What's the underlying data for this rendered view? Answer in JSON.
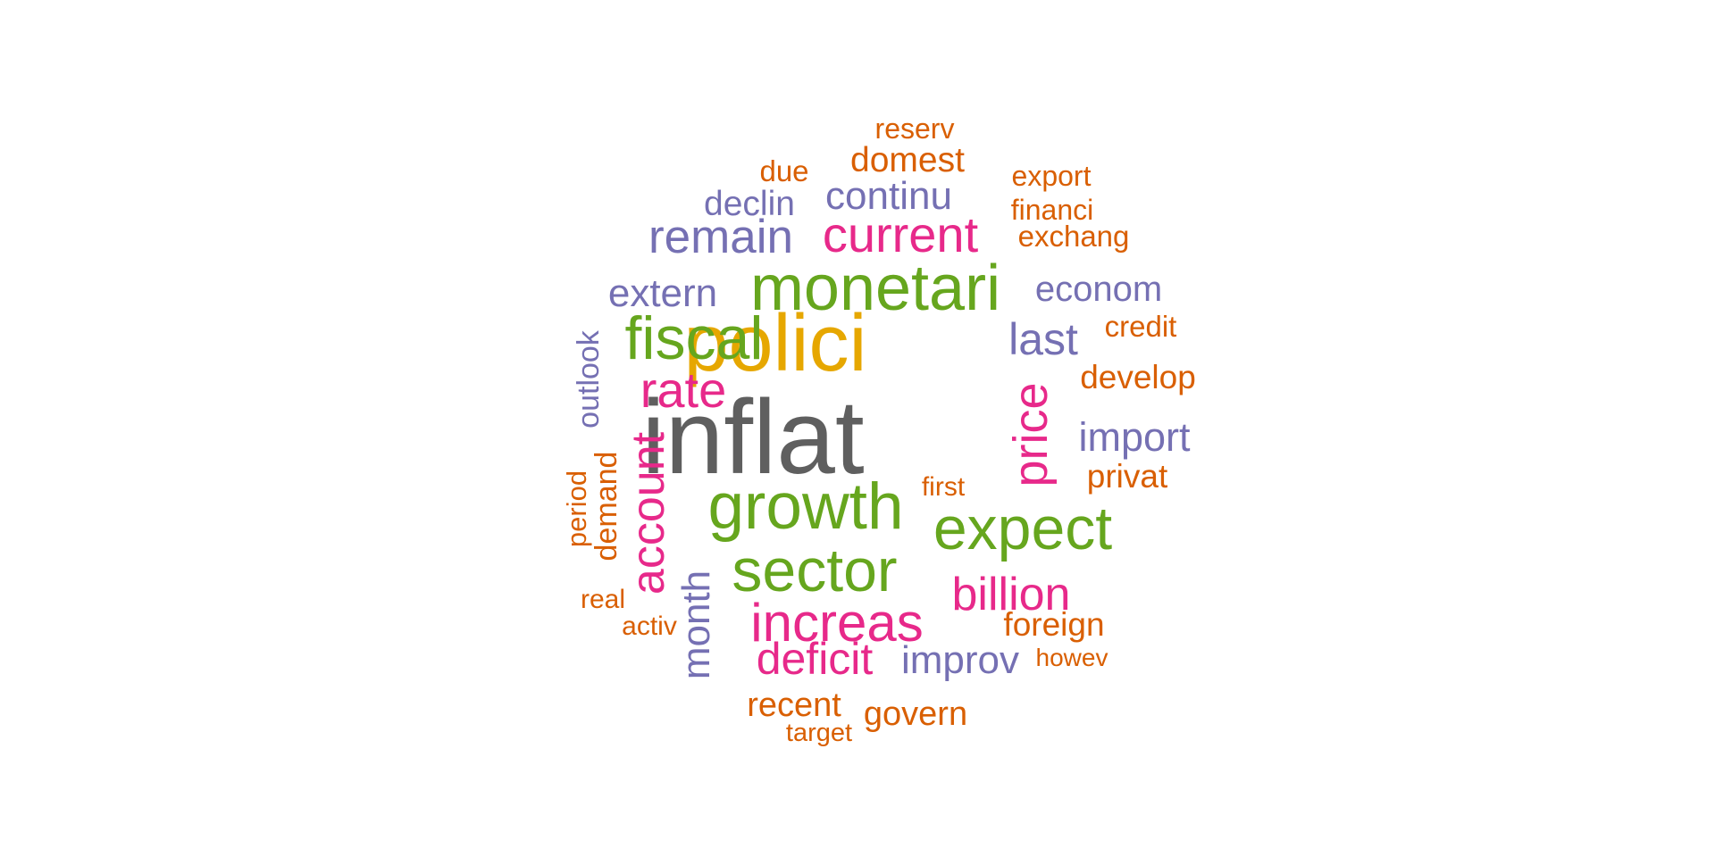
{
  "word_cloud": {
    "colors": {
      "gray": "#5f5f5f",
      "gold": "#e6a700",
      "green": "#66a61e",
      "magenta": "#e7298a",
      "purple": "#7570b3",
      "orange": "#d95f02"
    },
    "words": [
      {
        "text": "inflat",
        "color": "gray"
      },
      {
        "text": "polici",
        "color": "gold"
      },
      {
        "text": "monetari",
        "color": "green"
      },
      {
        "text": "growth",
        "color": "green"
      },
      {
        "text": "fiscal",
        "color": "green"
      },
      {
        "text": "sector",
        "color": "green"
      },
      {
        "text": "expect",
        "color": "green"
      },
      {
        "text": "current",
        "color": "magenta"
      },
      {
        "text": "rate",
        "color": "magenta"
      },
      {
        "text": "account",
        "color": "magenta"
      },
      {
        "text": "price",
        "color": "magenta"
      },
      {
        "text": "increas",
        "color": "magenta"
      },
      {
        "text": "billion",
        "color": "magenta"
      },
      {
        "text": "deficit",
        "color": "magenta"
      },
      {
        "text": "remain",
        "color": "purple"
      },
      {
        "text": "extern",
        "color": "purple"
      },
      {
        "text": "last",
        "color": "purple"
      },
      {
        "text": "continu",
        "color": "purple"
      },
      {
        "text": "declin",
        "color": "purple"
      },
      {
        "text": "econom",
        "color": "purple"
      },
      {
        "text": "import",
        "color": "purple"
      },
      {
        "text": "month",
        "color": "purple"
      },
      {
        "text": "improv",
        "color": "purple"
      },
      {
        "text": "outlook",
        "color": "purple"
      },
      {
        "text": "reserv",
        "color": "orange"
      },
      {
        "text": "domest",
        "color": "orange"
      },
      {
        "text": "due",
        "color": "orange"
      },
      {
        "text": "export",
        "color": "orange"
      },
      {
        "text": "financi",
        "color": "orange"
      },
      {
        "text": "exchang",
        "color": "orange"
      },
      {
        "text": "credit",
        "color": "orange"
      },
      {
        "text": "develop",
        "color": "orange"
      },
      {
        "text": "privat",
        "color": "orange"
      },
      {
        "text": "first",
        "color": "orange"
      },
      {
        "text": "period",
        "color": "orange"
      },
      {
        "text": "demand",
        "color": "orange"
      },
      {
        "text": "real",
        "color": "orange"
      },
      {
        "text": "activ",
        "color": "orange"
      },
      {
        "text": "foreign",
        "color": "orange"
      },
      {
        "text": "howev",
        "color": "orange"
      },
      {
        "text": "recent",
        "color": "orange"
      },
      {
        "text": "govern",
        "color": "orange"
      },
      {
        "text": "target",
        "color": "orange"
      }
    ]
  }
}
